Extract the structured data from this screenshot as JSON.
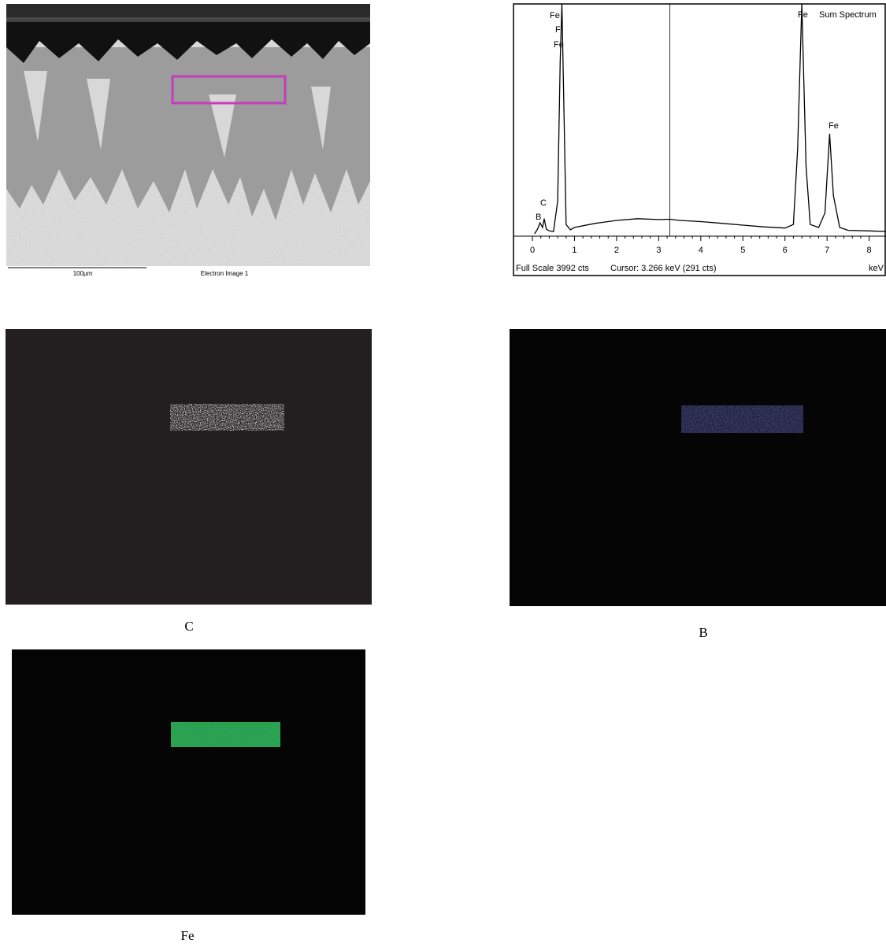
{
  "sem_image": {
    "scale_bar": "100µm",
    "caption": "Electron Image 1"
  },
  "spectrum": {
    "type": "line",
    "title": "Sum Spectrum",
    "color": "#000000",
    "peak_labels": [
      "Fe",
      "F",
      "Fe",
      "C",
      "B",
      "Fe",
      "Fe"
    ],
    "x": [
      0.05,
      0.12,
      0.18,
      0.24,
      0.28,
      0.33,
      0.4,
      0.5,
      0.6,
      0.66,
      0.7,
      0.74,
      0.8,
      0.9,
      1.0,
      1.5,
      2.0,
      2.5,
      3.0,
      3.266,
      3.5,
      4.0,
      4.5,
      5.0,
      5.5,
      6.0,
      6.2,
      6.3,
      6.4,
      6.5,
      6.6,
      6.8,
      6.95,
      7.06,
      7.15,
      7.3,
      7.5,
      8.0,
      8.4
    ],
    "values": [
      40,
      120,
      230,
      150,
      300,
      120,
      90,
      80,
      600,
      3000,
      3992,
      2500,
      200,
      110,
      150,
      220,
      270,
      300,
      285,
      291,
      270,
      250,
      220,
      190,
      160,
      140,
      200,
      1500,
      3992,
      1200,
      200,
      150,
      400,
      1760,
      700,
      150,
      100,
      90,
      80
    ],
    "xlim": [
      -0.45,
      8.4
    ],
    "ylim": [
      0,
      3992
    ],
    "xticks": [
      0,
      1,
      2,
      3,
      4,
      5,
      6,
      7,
      8
    ],
    "full_scale": "Full Scale 3992 cts",
    "cursor_label": "Cursor:",
    "cursor": 3.266,
    "cursor_readout": "keV (291 cts)",
    "x_unit": "keV"
  },
  "maps": [
    {
      "label": "C"
    },
    {
      "label": "B"
    },
    {
      "label": "Fe"
    }
  ]
}
